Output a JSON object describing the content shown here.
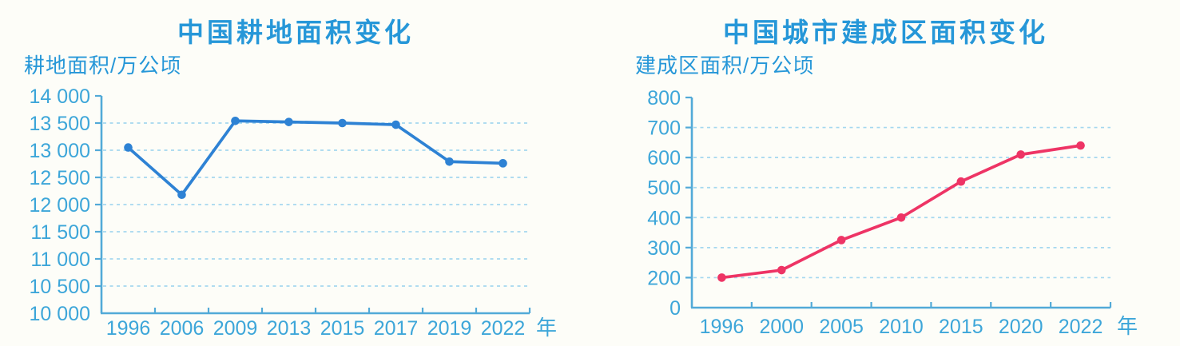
{
  "figure": {
    "background_color": "#fdfdf8",
    "title_color": "#2697d8",
    "text_color": "#3da6d9",
    "axis_color": "#52aad8",
    "grid_color": "#a5d8ef"
  },
  "chart_data": [
    {
      "type": "line",
      "title": "中国耕地面积变化",
      "ylabel": "耕地面积/万公顷",
      "xlabel": "年",
      "categories": [
        "1996",
        "2006",
        "2009",
        "2013",
        "2015",
        "2017",
        "2019",
        "2022"
      ],
      "values": [
        13050,
        12180,
        13540,
        13520,
        13500,
        13470,
        12790,
        12760
      ],
      "ytick_labels": [
        "14 000",
        "13 500",
        "13 000",
        "12 500",
        "12 000",
        "11 500",
        "11 000",
        "10 500",
        "10 000"
      ],
      "ytick_values": [
        14000,
        13500,
        13000,
        12500,
        12000,
        11500,
        11000,
        10500,
        10000
      ],
      "ylim": [
        10000,
        14000
      ],
      "line_color": "#2e82d4",
      "marker": "circle",
      "grid": "dashed horizontal gridlines at each y tick",
      "legend": "none"
    },
    {
      "type": "line",
      "title": "中国城市建成区面积变化",
      "ylabel": "建成区面积/万公顷",
      "xlabel": "年",
      "categories": [
        "1996",
        "2000",
        "2005",
        "2010",
        "2015",
        "2020",
        "2022"
      ],
      "values": [
        200,
        225,
        325,
        400,
        520,
        610,
        640
      ],
      "ytick_labels": [
        "800",
        "700",
        "600",
        "500",
        "400",
        "300",
        "200",
        "0"
      ],
      "ytick_values": [
        800,
        700,
        600,
        500,
        400,
        300,
        200,
        0
      ],
      "ylim": [
        0,
        800
      ],
      "axis_note": "y axis compressed below 200: the 0 to 200 interval spans one tick step",
      "line_color": "#ee3465",
      "marker": "circle",
      "grid": "dashed horizontal gridlines at each y tick",
      "legend": "none"
    }
  ]
}
